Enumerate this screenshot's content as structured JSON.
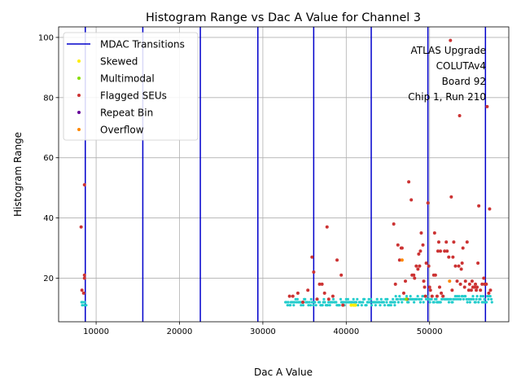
{
  "chart_data": {
    "type": "scatter",
    "title": "Histogram Range vs Dac A Value for Channel 3",
    "xlabel": "Dac A Value",
    "ylabel": "Histogram Range",
    "xlim": [
      5500,
      59500
    ],
    "ylim": [
      5.5,
      103.5
    ],
    "xticks": [
      10000,
      20000,
      30000,
      40000,
      50000
    ],
    "xtick_labels": [
      "10000",
      "20000",
      "30000",
      "40000",
      "50000"
    ],
    "yticks": [
      20,
      40,
      60,
      80,
      100
    ],
    "ytick_labels": [
      "20",
      "40",
      "60",
      "80",
      "100"
    ],
    "grid": true,
    "legend_position": "top-left",
    "annotation": [
      "ATLAS Upgrade",
      "COLUTAv4",
      "Board 92",
      "Chip 1, Run 210"
    ],
    "legend": [
      {
        "label": "MDAC Transitions",
        "kind": "line",
        "color": "#0000cc"
      },
      {
        "label": "Skewed",
        "kind": "dot",
        "color": "#ffee00"
      },
      {
        "label": "Multimodal",
        "kind": "dot",
        "color": "#88dd00"
      },
      {
        "label": "Flagged SEUs",
        "kind": "dot",
        "color": "#cc3333"
      },
      {
        "label": "Repeat Bin",
        "kind": "dot",
        "color": "#660099"
      },
      {
        "label": "Overflow",
        "kind": "dot",
        "color": "#ff8800"
      }
    ],
    "mdac_transitions": [
      8700,
      15600,
      22500,
      29400,
      36100,
      43000,
      49800,
      56700
    ],
    "normal_color": "#22cccc",
    "normal_points": {
      "segments": [
        [
          8200,
          8800,
          11,
          12
        ],
        [
          32700,
          45800,
          11,
          13
        ],
        [
          45800,
          57500,
          12,
          14
        ]
      ]
    },
    "flagged_seus": {
      "color": "#cc3333",
      "x": [
        8200,
        8300,
        8500,
        8600,
        8600,
        8600,
        33200,
        33600,
        34200,
        34800,
        35400,
        35900,
        36100,
        36500,
        36800,
        37100,
        37400,
        37700,
        37900,
        38400,
        38900,
        39400,
        39600,
        45700,
        45900,
        46200,
        46400,
        46600,
        46700,
        46900,
        47100,
        47300,
        47500,
        47800,
        47900,
        48100,
        48200,
        48400,
        48600,
        48700,
        48800,
        48900,
        49000,
        49200,
        49300,
        49400,
        49500,
        49600,
        49800,
        49900,
        50000,
        50100,
        50300,
        50500,
        50600,
        50700,
        50900,
        51000,
        51100,
        51200,
        51300,
        51400,
        51600,
        51800,
        52000,
        52100,
        52300,
        52500,
        52600,
        52700,
        52800,
        52900,
        53100,
        53300,
        53500,
        53600,
        53700,
        53800,
        53900,
        54000,
        54200,
        54300,
        54500,
        54700,
        54800,
        55000,
        55100,
        55200,
        55400,
        55500,
        55600,
        55700,
        55800,
        55900,
        56100,
        56300,
        56500,
        56600,
        56800,
        56900,
        57100,
        57200,
        57300
      ],
      "y": [
        37,
        16,
        15,
        51,
        21,
        20,
        14,
        14,
        15,
        12,
        16,
        27,
        22,
        13,
        18,
        18,
        15,
        37,
        13,
        14,
        26,
        21,
        11,
        38,
        18,
        31,
        26,
        30,
        30,
        15,
        19,
        13,
        52,
        46,
        21,
        21,
        20,
        24,
        23,
        28,
        24,
        29,
        35,
        31,
        19,
        17,
        14,
        25,
        45,
        24,
        17,
        16,
        14,
        21,
        35,
        21,
        14,
        29,
        32,
        17,
        29,
        15,
        14,
        29,
        32,
        29,
        27,
        99,
        47,
        16,
        27,
        32,
        24,
        19,
        24,
        74,
        18,
        23,
        25,
        30,
        17,
        19,
        32,
        16,
        18,
        16,
        19,
        17,
        17,
        18,
        16,
        17,
        25,
        44,
        16,
        18,
        20,
        18,
        18,
        77,
        15,
        43,
        16
      ]
    },
    "skewed_points": {
      "color": "#ffee00",
      "x": [
        40600,
        40900,
        41100
      ],
      "y": [
        11,
        11,
        11
      ]
    },
    "multimodal_points": {
      "color": "#88dd00",
      "x": [
        47200
      ],
      "y": [
        13
      ]
    },
    "overflow_points": {
      "color": "#ff8800",
      "x": [
        46700,
        52400
      ],
      "y": [
        26,
        19
      ]
    }
  }
}
